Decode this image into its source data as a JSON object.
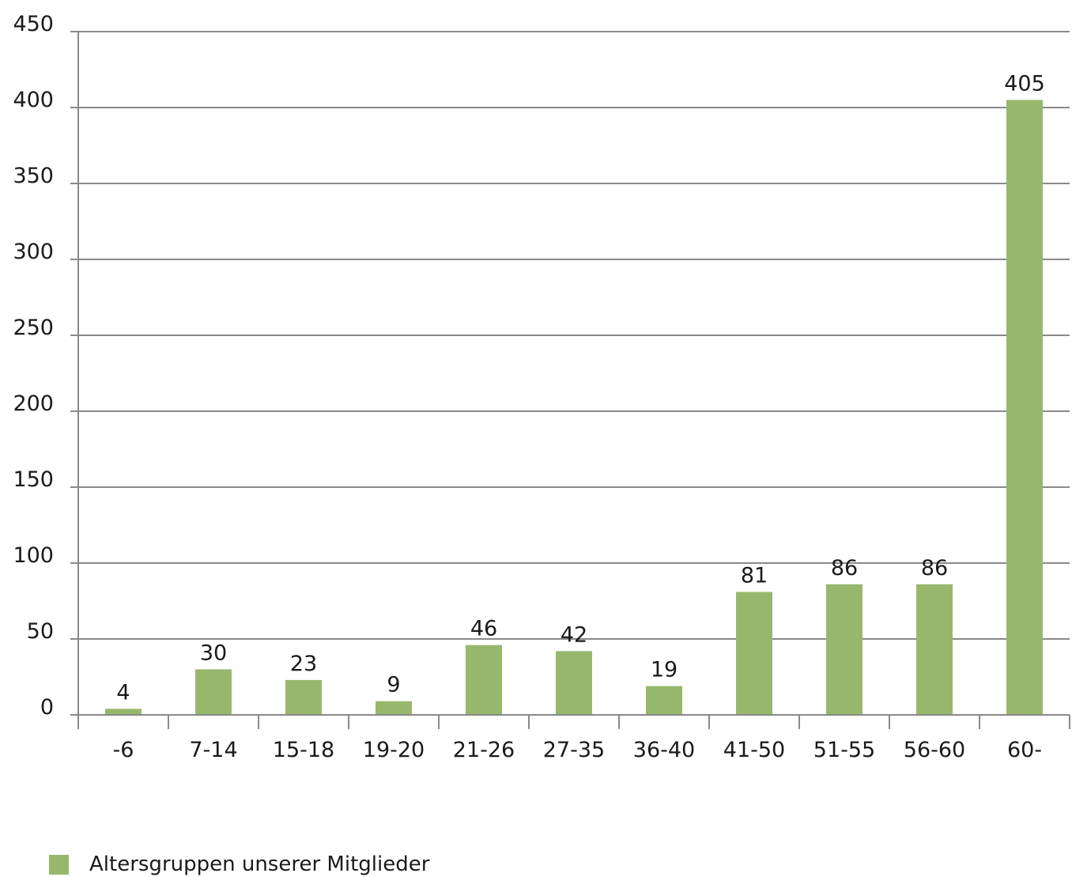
{
  "chart_data": {
    "type": "bar",
    "title": "",
    "xlabel": "",
    "ylabel": "",
    "categories": [
      "-6",
      "7-14",
      "15-18",
      "19-20",
      "21-26",
      "27-35",
      "36-40",
      "41-50",
      "51-55",
      "56-60",
      "60-"
    ],
    "series": [
      {
        "name": "Altersgruppen unserer Mitglieder",
        "values": [
          4,
          30,
          23,
          9,
          46,
          42,
          19,
          81,
          86,
          86,
          405
        ],
        "color": "#97b86c"
      }
    ],
    "ylim": [
      0,
      450
    ],
    "yticks": [
      0,
      50,
      100,
      150,
      200,
      250,
      300,
      350,
      400,
      450
    ],
    "grid": true,
    "data_labels": true,
    "legend_position": "bottom-left"
  }
}
